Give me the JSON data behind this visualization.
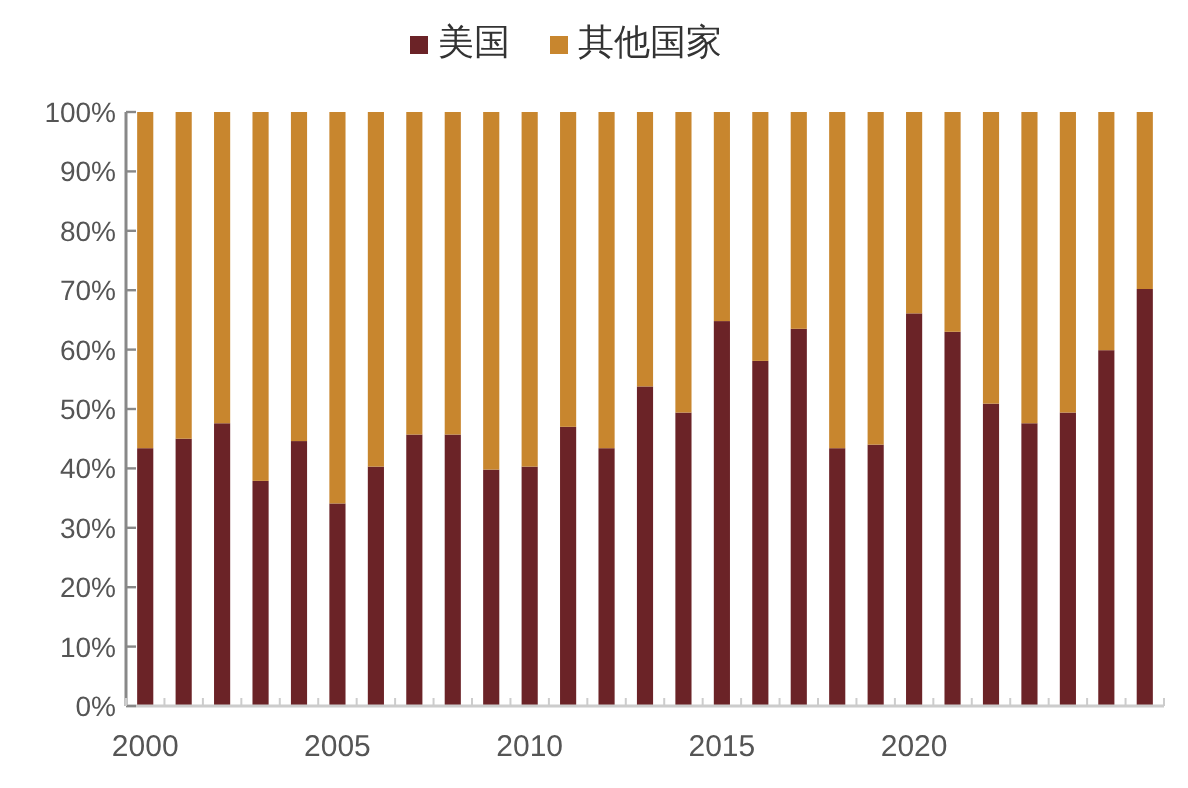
{
  "chart_data": {
    "type": "bar",
    "stacked": true,
    "legend": "top",
    "grid": false,
    "categories": [
      "2000",
      null,
      null,
      null,
      null,
      "2005",
      null,
      null,
      null,
      null,
      "2010",
      null,
      null,
      null,
      null,
      "2015",
      null,
      null,
      null,
      null,
      "2020",
      null,
      null,
      null,
      null,
      null,
      null
    ],
    "series": [
      {
        "name": "美国",
        "color": "#6b2327",
        "values": [
          43.4,
          45,
          47.6,
          37.9,
          44.6,
          34.1,
          40.3,
          45.7,
          45.7,
          39.8,
          40.3,
          47,
          43.4,
          53.8,
          49.4,
          64.8,
          58.1,
          63.5,
          43.4,
          44,
          66.1,
          63,
          50.9,
          47.6,
          49.4,
          59.9,
          70.2
        ]
      },
      {
        "name": "其他国家",
        "color": "#c8862e",
        "values": [
          56.6,
          55,
          52.4,
          62.1,
          55.4,
          65.9,
          59.7,
          54.3,
          54.3,
          60.2,
          59.7,
          53,
          56.6,
          46.2,
          50.6,
          35.2,
          41.9,
          36.5,
          56.6,
          56,
          33.9,
          37,
          49.1,
          52.4,
          50.6,
          40.1,
          29.8
        ]
      }
    ],
    "ylim": [
      0,
      100
    ],
    "yticks": [
      {
        "value": 0,
        "label": "0%"
      },
      {
        "value": 10,
        "label": "10%"
      },
      {
        "value": 20,
        "label": "20%"
      },
      {
        "value": 30,
        "label": "30%"
      },
      {
        "value": 40,
        "label": "40%"
      },
      {
        "value": 50,
        "label": "50%"
      },
      {
        "value": 60,
        "label": "60%"
      },
      {
        "value": 70,
        "label": "70%"
      },
      {
        "value": 80,
        "label": "80%"
      },
      {
        "value": 90,
        "label": "90%"
      },
      {
        "value": 100,
        "label": "100%"
      }
    ]
  }
}
